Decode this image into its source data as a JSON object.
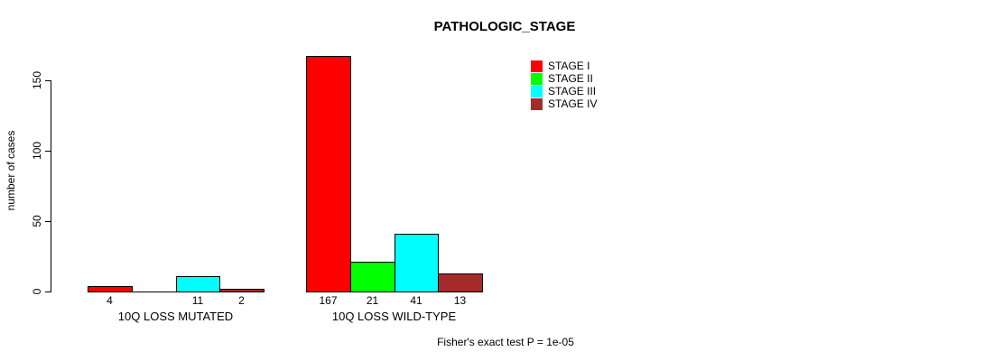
{
  "chart_data": {
    "type": "bar",
    "title": "PATHOLOGIC_STAGE",
    "ylabel": "number of cases",
    "ylim": [
      0,
      150
    ],
    "yticks": [
      0,
      50,
      100,
      150
    ],
    "categories": [
      "10Q LOSS MUTATED",
      "10Q LOSS WILD-TYPE"
    ],
    "series": [
      {
        "name": "STAGE I",
        "color": "#ff0000",
        "values": [
          4,
          167
        ]
      },
      {
        "name": "STAGE II",
        "color": "#00ff00",
        "values": [
          0,
          21
        ]
      },
      {
        "name": "STAGE III",
        "color": "#00ffff",
        "values": [
          11,
          41
        ]
      },
      {
        "name": "STAGE IV",
        "color": "#a52a2a",
        "values": [
          2,
          13
        ]
      }
    ],
    "bar_value_labels_shown": true,
    "legend_position": "top-right",
    "grid": false,
    "footnote": "Fisher's exact test P = 1e-05"
  },
  "colors": {
    "background": "#ffffff",
    "axis": "#000000",
    "text": "#000000",
    "bar_border": "#000000"
  }
}
